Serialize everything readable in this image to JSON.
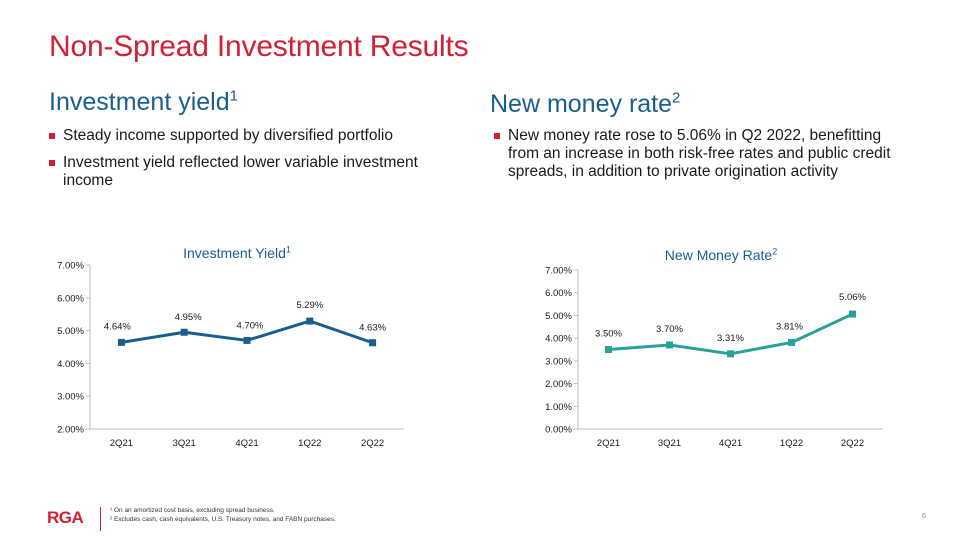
{
  "slide": {
    "title": "Non-Spread Investment Results",
    "page_number": "6"
  },
  "left": {
    "heading": "Investment yield",
    "heading_sup": "1",
    "bullets": [
      "Steady income supported by diversified portfolio",
      "Investment yield reflected lower variable investment income"
    ]
  },
  "right": {
    "heading": "New money rate",
    "heading_sup": "2",
    "bullets": [
      "New money rate rose to 5.06% in Q2 2022, benefitting from an increase in both risk-free rates and public credit spreads, in addition to private origination activity"
    ]
  },
  "footer": {
    "logo": "RGA",
    "note1": "¹ On an amortized cost basis, excluding spread business.",
    "note2": "² Excludes cash, cash equivalents, U.S. Treasury notes, and FABN purchases."
  },
  "colors": {
    "title_red": "#d31f36",
    "heading_blue": "#1a5e8f",
    "series1": "#1a5e8f",
    "series2": "#2aa198"
  },
  "chart_data": [
    {
      "type": "line",
      "title": "Investment  Yield",
      "title_sup": "1",
      "categories": [
        "2Q21",
        "3Q21",
        "4Q21",
        "1Q22",
        "2Q22"
      ],
      "values": [
        4.64,
        4.95,
        4.7,
        5.29,
        4.63
      ],
      "data_labels": [
        "4.64%",
        "4.95%",
        "4.70%",
        "5.29%",
        "4.63%"
      ],
      "ylim": [
        2.0,
        7.0
      ],
      "yticks": [
        2.0,
        3.0,
        4.0,
        5.0,
        6.0,
        7.0
      ],
      "ytick_labels": [
        "2.00%",
        "3.00%",
        "4.00%",
        "5.00%",
        "6.00%",
        "7.00%"
      ],
      "xlabel": "",
      "ylabel": "",
      "grid": false
    },
    {
      "type": "line",
      "title": "New Money Rate",
      "title_sup": "2",
      "categories": [
        "2Q21",
        "3Q21",
        "4Q21",
        "1Q22",
        "2Q22"
      ],
      "values": [
        3.5,
        3.7,
        3.31,
        3.81,
        5.06
      ],
      "data_labels": [
        "3.50%",
        "3.70%",
        "3.31%",
        "3.81%",
        "5.06%"
      ],
      "ylim": [
        0.0,
        7.0
      ],
      "yticks": [
        0,
        1,
        2,
        3,
        4,
        5,
        6,
        7
      ],
      "ytick_labels": [
        "0.00%",
        "1.00%",
        "2.00%",
        "3.00%",
        "4.00%",
        "5.00%",
        "6.00%",
        "7.00%"
      ],
      "xlabel": "",
      "ylabel": "",
      "grid": false
    }
  ]
}
